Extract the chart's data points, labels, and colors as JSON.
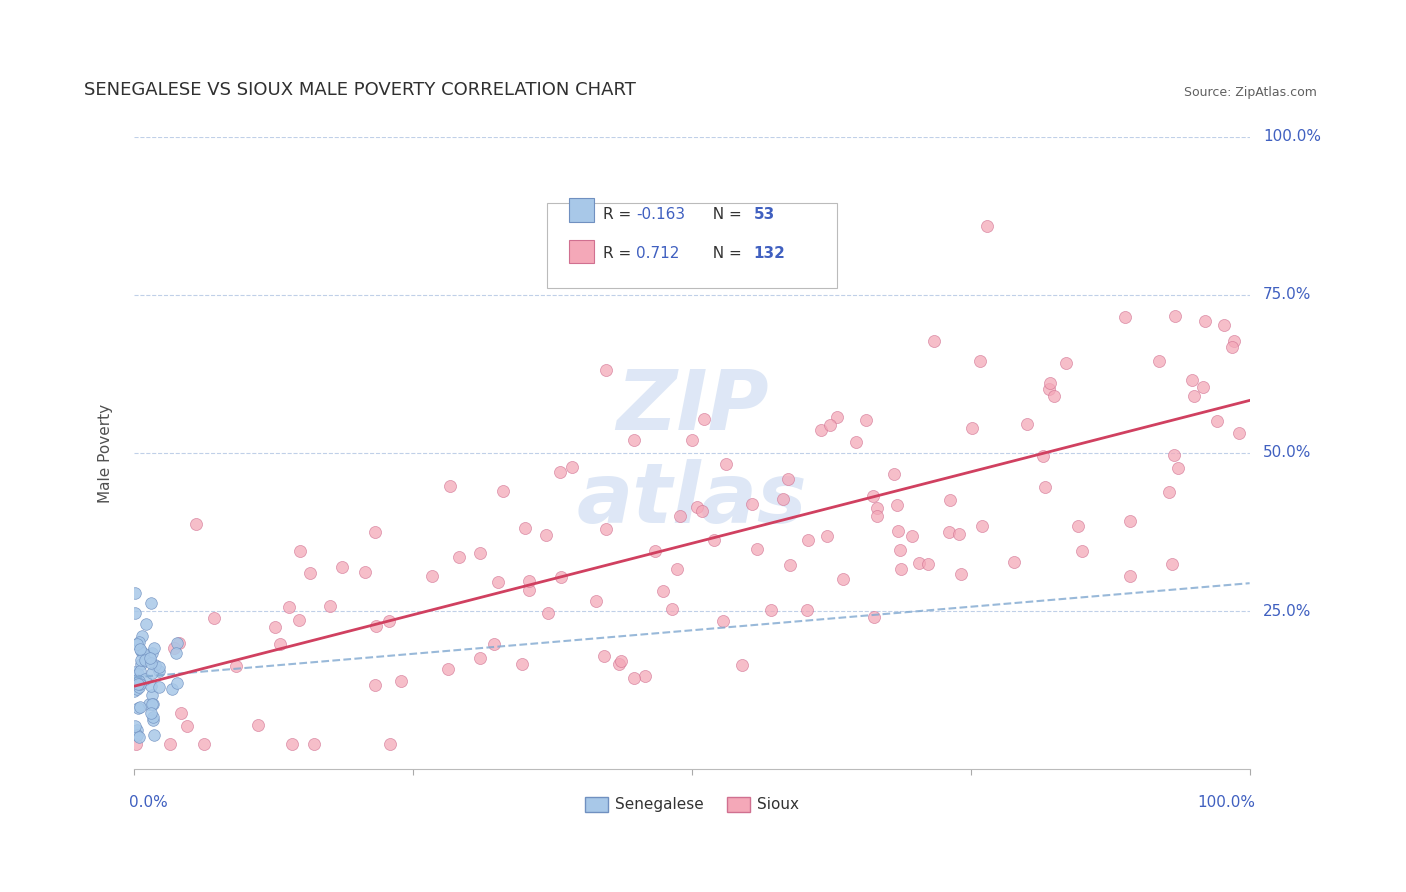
{
  "title": "SENEGALESE VS SIOUX MALE POVERTY CORRELATION CHART",
  "source": "Source: ZipAtlas.com",
  "ylabel": "Male Poverty",
  "senegalese_color": "#a8c8e8",
  "sioux_color": "#f4a8b8",
  "senegalese_edge": "#7090c0",
  "sioux_edge": "#d07090",
  "trend_senegalese_color": "#80a8d0",
  "trend_sioux_color": "#d04060",
  "watermark_color": "#c8d8f0",
  "background": "#ffffff",
  "grid_color": "#c0d0e8",
  "legend_r1": "R = -0.163",
  "legend_n1": "N =  53",
  "legend_r2": "R =  0.712",
  "legend_n2": "N = 132",
  "legend_text_color": "#4060c0",
  "ytick_color": "#4060c0",
  "xtick_color": "#4060c0",
  "title_color": "#303030",
  "source_color": "#606060",
  "ylabel_color": "#505050"
}
